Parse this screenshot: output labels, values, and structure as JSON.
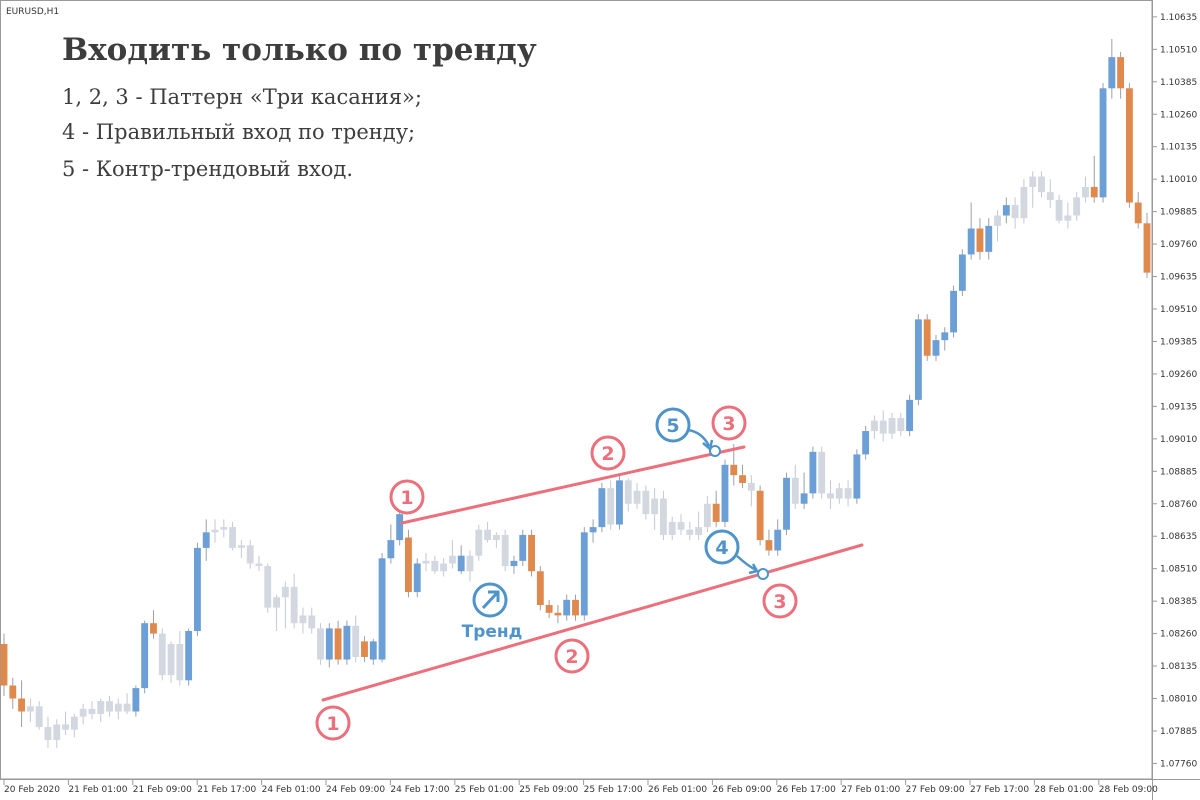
{
  "symbol": "EURUSD,H1",
  "overlay": {
    "title": "Входить только по тренду",
    "lines": [
      "1, 2, 3 - Паттерн «Три касания»;",
      "4 - Правильный вход по тренду;",
      "5 - Контр-трендовый вход."
    ],
    "trend_label": "Тренд"
  },
  "badges": {
    "lower_1": "1",
    "lower_2": "2",
    "lower_3": "3",
    "upper_1": "1",
    "upper_2": "2",
    "upper_3": "3",
    "entry_4": "4",
    "entry_5": "5"
  },
  "colors": {
    "bull": "#6b9fd6",
    "bear": "#e0894d",
    "neutral": "#d3d7e0",
    "trendline": "#ec6f7c",
    "badge_red": "#ec6f7c",
    "badge_blue": "#4e93c9"
  },
  "chart_data": {
    "type": "candlestick",
    "symbol": "EURUSD",
    "timeframe": "H1",
    "ylim": [
      1.077,
      1.107
    ],
    "y_ticks": [
      "1.10635",
      "1.10510",
      "1.10385",
      "1.10260",
      "1.10135",
      "1.10010",
      "1.09885",
      "1.09760",
      "1.09635",
      "1.09510",
      "1.09385",
      "1.09260",
      "1.09135",
      "1.09010",
      "1.08885",
      "1.08760",
      "1.08635",
      "1.08510",
      "1.08385",
      "1.08260",
      "1.08135",
      "1.08010",
      "1.07885",
      "1.07760"
    ],
    "x_ticks": [
      "20 Feb 2020",
      "21 Feb 01:00",
      "21 Feb 09:00",
      "21 Feb 17:00",
      "24 Feb 01:00",
      "24 Feb 09:00",
      "24 Feb 17:00",
      "25 Feb 01:00",
      "25 Feb 09:00",
      "25 Feb 17:00",
      "26 Feb 01:00",
      "26 Feb 09:00",
      "26 Feb 17:00",
      "27 Feb 01:00",
      "27 Feb 09:00",
      "27 Feb 17:00",
      "28 Feb 01:00",
      "28 Feb 09:00"
    ],
    "candles": [
      [
        1.0822,
        1.0826,
        1.0802,
        1.0806,
        "bear"
      ],
      [
        1.0806,
        1.0809,
        1.0797,
        1.0801,
        "bear"
      ],
      [
        1.0801,
        1.0808,
        1.079,
        1.0796,
        "bear"
      ],
      [
        1.0796,
        1.0801,
        1.0792,
        1.0798,
        "neutral"
      ],
      [
        1.0798,
        1.08,
        1.0789,
        1.079,
        "neutral"
      ],
      [
        1.079,
        1.0794,
        1.0782,
        1.0785,
        "neutral"
      ],
      [
        1.0785,
        1.0793,
        1.0782,
        1.0791,
        "neutral"
      ],
      [
        1.0791,
        1.0796,
        1.0787,
        1.0789,
        "neutral"
      ],
      [
        1.0789,
        1.0795,
        1.0786,
        1.0794,
        "neutral"
      ],
      [
        1.0794,
        1.0799,
        1.0791,
        1.0797,
        "neutral"
      ],
      [
        1.0797,
        1.08,
        1.0793,
        1.0795,
        "neutral"
      ],
      [
        1.0795,
        1.0801,
        1.0792,
        1.08,
        "neutral"
      ],
      [
        1.08,
        1.0802,
        1.0794,
        1.0796,
        "neutral"
      ],
      [
        1.0796,
        1.0801,
        1.0793,
        1.0799,
        "neutral"
      ],
      [
        1.0799,
        1.0803,
        1.0795,
        1.0796,
        "neutral"
      ],
      [
        1.0796,
        1.0806,
        1.0794,
        1.0805,
        "bull"
      ],
      [
        1.0805,
        1.0831,
        1.0803,
        1.083,
        "bull"
      ],
      [
        1.083,
        1.0835,
        1.0824,
        1.0826,
        "bear"
      ],
      [
        1.0826,
        1.0828,
        1.0808,
        1.081,
        "neutral"
      ],
      [
        1.081,
        1.0823,
        1.0807,
        1.0822,
        "neutral"
      ],
      [
        1.0822,
        1.0827,
        1.0806,
        1.0808,
        "neutral"
      ],
      [
        1.0808,
        1.0828,
        1.0806,
        1.0827,
        "bull"
      ],
      [
        1.0827,
        1.0861,
        1.0825,
        1.0859,
        "bull"
      ],
      [
        1.0859,
        1.087,
        1.0854,
        1.0865,
        "bull"
      ],
      [
        1.0865,
        1.087,
        1.0861,
        1.0866,
        "neutral"
      ],
      [
        1.0866,
        1.087,
        1.0863,
        1.0867,
        "neutral"
      ],
      [
        1.0867,
        1.0869,
        1.0858,
        1.0859,
        "neutral"
      ],
      [
        1.0859,
        1.0862,
        1.0855,
        1.086,
        "neutral"
      ],
      [
        1.086,
        1.0862,
        1.0851,
        1.0853,
        "neutral"
      ],
      [
        1.0853,
        1.0856,
        1.085,
        1.0852,
        "neutral"
      ],
      [
        1.0852,
        1.0853,
        1.0834,
        1.0836,
        "neutral"
      ],
      [
        1.0836,
        1.0841,
        1.0827,
        1.084,
        "neutral"
      ],
      [
        1.084,
        1.0846,
        1.0828,
        1.0844,
        "neutral"
      ],
      [
        1.0844,
        1.0849,
        1.0828,
        1.083,
        "neutral"
      ],
      [
        1.083,
        1.0836,
        1.0826,
        1.0833,
        "neutral"
      ],
      [
        1.0833,
        1.0836,
        1.0826,
        1.0828,
        "neutral"
      ],
      [
        1.0828,
        1.083,
        1.0814,
        1.0816,
        "neutral"
      ],
      [
        1.0816,
        1.083,
        1.0813,
        1.0828,
        "bull"
      ],
      [
        1.0828,
        1.0831,
        1.0814,
        1.0816,
        "bear"
      ],
      [
        1.0816,
        1.0831,
        1.0814,
        1.0829,
        "bull"
      ],
      [
        1.0829,
        1.0833,
        1.0815,
        1.0817,
        "neutral"
      ],
      [
        1.0817,
        1.0825,
        1.0815,
        1.0823,
        "bear"
      ],
      [
        1.0823,
        1.0824,
        1.0814,
        1.0816,
        "bull"
      ],
      [
        1.0816,
        1.0857,
        1.0815,
        1.0855,
        "bull"
      ],
      [
        1.0855,
        1.0868,
        1.0853,
        1.0862,
        "bull"
      ],
      [
        1.0862,
        1.0874,
        1.086,
        1.0872,
        "bull"
      ],
      [
        1.0863,
        1.0866,
        1.084,
        1.0842,
        "bear"
      ],
      [
        1.0842,
        1.0855,
        1.084,
        1.0853,
        "bull"
      ],
      [
        1.0853,
        1.0857,
        1.085,
        1.0854,
        "neutral"
      ],
      [
        1.0854,
        1.0856,
        1.0849,
        1.085,
        "neutral"
      ],
      [
        1.085,
        1.0855,
        1.0848,
        1.0853,
        "neutral"
      ],
      [
        1.0853,
        1.0862,
        1.0851,
        1.0856,
        "neutral"
      ],
      [
        1.0856,
        1.086,
        1.0849,
        1.085,
        "bull"
      ],
      [
        1.085,
        1.0858,
        1.0846,
        1.0856,
        "neutral"
      ],
      [
        1.0856,
        1.0868,
        1.0854,
        1.0866,
        "neutral"
      ],
      [
        1.0866,
        1.0869,
        1.0861,
        1.0862,
        "neutral"
      ],
      [
        1.0862,
        1.0865,
        1.0859,
        1.0864,
        "neutral"
      ],
      [
        1.0864,
        1.0866,
        1.085,
        1.0852,
        "neutral"
      ],
      [
        1.0852,
        1.0856,
        1.0849,
        1.0854,
        "bull"
      ],
      [
        1.0854,
        1.0866,
        1.0852,
        1.0864,
        "bull"
      ],
      [
        1.0864,
        1.0866,
        1.0848,
        1.085,
        "bear"
      ],
      [
        1.085,
        1.0852,
        1.0835,
        1.0837,
        "bear"
      ],
      [
        1.0837,
        1.0839,
        1.0832,
        1.0834,
        "bear"
      ],
      [
        1.0834,
        1.0837,
        1.083,
        1.0833,
        "bear"
      ],
      [
        1.0833,
        1.0841,
        1.0831,
        1.0839,
        "bull"
      ],
      [
        1.0839,
        1.0841,
        1.0831,
        1.0833,
        "bear"
      ],
      [
        1.0833,
        1.0867,
        1.0831,
        1.0865,
        "bull"
      ],
      [
        1.0865,
        1.087,
        1.0861,
        1.0867,
        "bull"
      ],
      [
        1.0867,
        1.0884,
        1.0865,
        1.0882,
        "bull"
      ],
      [
        1.0882,
        1.0885,
        1.0866,
        1.0868,
        "neutral"
      ],
      [
        1.0868,
        1.0887,
        1.0866,
        1.0885,
        "bull"
      ],
      [
        1.0885,
        1.0886,
        1.0873,
        1.0876,
        "neutral"
      ],
      [
        1.0876,
        1.0884,
        1.0874,
        1.0881,
        "neutral"
      ],
      [
        1.0881,
        1.0883,
        1.087,
        1.0872,
        "neutral"
      ],
      [
        1.0872,
        1.0882,
        1.0866,
        1.0878,
        "neutral"
      ],
      [
        1.0878,
        1.0881,
        1.0862,
        1.0864,
        "neutral"
      ],
      [
        1.0864,
        1.0871,
        1.0862,
        1.0869,
        "neutral"
      ],
      [
        1.0869,
        1.0872,
        1.0864,
        1.0866,
        "neutral"
      ],
      [
        1.0866,
        1.0869,
        1.0862,
        1.0864,
        "neutral"
      ],
      [
        1.0864,
        1.0873,
        1.0862,
        1.0867,
        "neutral"
      ],
      [
        1.0867,
        1.0879,
        1.0865,
        1.0876,
        "neutral"
      ],
      [
        1.0876,
        1.0881,
        1.0867,
        1.0869,
        "bear"
      ],
      [
        1.0869,
        1.0893,
        1.0867,
        1.0891,
        "bull"
      ],
      [
        1.0891,
        1.0899,
        1.0883,
        1.0887,
        "bear"
      ],
      [
        1.0887,
        1.0891,
        1.0882,
        1.0884,
        "bear"
      ],
      [
        1.0884,
        1.0887,
        1.0875,
        1.0881,
        "neutral"
      ],
      [
        1.0881,
        1.0883,
        1.086,
        1.0862,
        "bear"
      ],
      [
        1.0862,
        1.0866,
        1.0856,
        1.0858,
        "bear"
      ],
      [
        1.0858,
        1.087,
        1.0856,
        1.0866,
        "bull"
      ],
      [
        1.0866,
        1.0888,
        1.0864,
        1.0886,
        "bull"
      ],
      [
        1.0886,
        1.0891,
        1.0874,
        1.0876,
        "neutral"
      ],
      [
        1.0876,
        1.0888,
        1.0874,
        1.088,
        "bull"
      ],
      [
        1.088,
        1.0898,
        1.0878,
        1.0896,
        "bull"
      ],
      [
        1.0896,
        1.0898,
        1.0878,
        1.088,
        "neutral"
      ],
      [
        1.088,
        1.0885,
        1.0874,
        1.0878,
        "neutral"
      ],
      [
        1.0878,
        1.0884,
        1.0876,
        1.0882,
        "neutral"
      ],
      [
        1.0882,
        1.0885,
        1.0875,
        1.0878,
        "neutral"
      ],
      [
        1.0878,
        1.0897,
        1.0876,
        1.0895,
        "bull"
      ],
      [
        1.0895,
        1.0906,
        1.0893,
        1.0904,
        "bull"
      ],
      [
        1.0904,
        1.091,
        1.0901,
        1.0908,
        "neutral"
      ],
      [
        1.0908,
        1.0912,
        1.09,
        1.0903,
        "neutral"
      ],
      [
        1.0903,
        1.0911,
        1.0901,
        1.0909,
        "neutral"
      ],
      [
        1.0909,
        1.0911,
        1.0902,
        1.0904,
        "neutral"
      ],
      [
        1.0904,
        1.0918,
        1.0902,
        1.0916,
        "bull"
      ],
      [
        1.0916,
        1.0949,
        1.0914,
        1.0947,
        "bull"
      ],
      [
        1.0947,
        1.0949,
        1.0931,
        1.0933,
        "bear"
      ],
      [
        1.0933,
        1.0941,
        1.0931,
        1.0939,
        "bull"
      ],
      [
        1.0939,
        1.0944,
        1.0935,
        1.0942,
        "bull"
      ],
      [
        1.0942,
        1.096,
        1.094,
        1.0958,
        "bull"
      ],
      [
        1.0958,
        1.0974,
        1.0956,
        1.0972,
        "bull"
      ],
      [
        1.0972,
        1.0992,
        1.097,
        1.0982,
        "bull"
      ],
      [
        1.0982,
        1.0986,
        1.097,
        1.0973,
        "bear"
      ],
      [
        1.0973,
        1.0986,
        1.097,
        1.0983,
        "bull"
      ],
      [
        1.0983,
        1.0989,
        1.0977,
        1.0987,
        "neutral"
      ],
      [
        1.0987,
        1.0994,
        1.0984,
        1.0991,
        "bull"
      ],
      [
        1.0991,
        1.0994,
        1.0982,
        1.0986,
        "neutral"
      ],
      [
        1.0986,
        1.1001,
        1.0984,
        1.0998,
        "neutral"
      ],
      [
        1.0998,
        1.1004,
        1.099,
        1.1002,
        "neutral"
      ],
      [
        1.1002,
        1.1004,
        1.0994,
        1.0996,
        "neutral"
      ],
      [
        1.0996,
        1.1001,
        1.099,
        1.0993,
        "neutral"
      ],
      [
        1.0993,
        1.0995,
        1.0984,
        1.0985,
        "neutral"
      ],
      [
        1.0985,
        1.0992,
        1.0982,
        1.0987,
        "neutral"
      ],
      [
        1.0987,
        1.0996,
        1.0985,
        1.0994,
        "neutral"
      ],
      [
        1.0994,
        1.1002,
        1.0992,
        1.0998,
        "neutral"
      ],
      [
        1.0998,
        1.101,
        1.0992,
        1.0994,
        "bear"
      ],
      [
        1.0994,
        1.1038,
        1.0992,
        1.1036,
        "bull"
      ],
      [
        1.1036,
        1.1055,
        1.1032,
        1.1048,
        "bull"
      ],
      [
        1.1048,
        1.105,
        1.1032,
        1.1036,
        "bear"
      ],
      [
        1.1036,
        1.1038,
        1.099,
        1.0992,
        "bear"
      ],
      [
        1.0992,
        1.0996,
        1.0982,
        1.0984,
        "bear"
      ],
      [
        1.0984,
        1.0988,
        1.0963,
        1.0965,
        "bear"
      ]
    ],
    "annotations": [
      "Тренд",
      "1",
      "2",
      "3",
      "4",
      "5"
    ]
  }
}
